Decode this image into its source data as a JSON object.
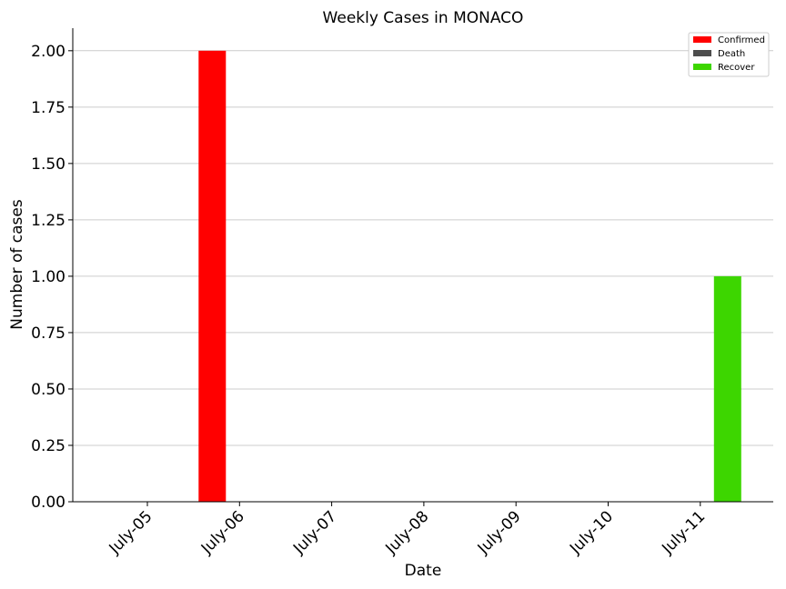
{
  "chart_data": {
    "type": "bar",
    "title": "Weekly Cases in MONACO",
    "xlabel": "Date",
    "ylabel": "Number of cases",
    "categories": [
      "July-05",
      "July-06",
      "July-07",
      "July-08",
      "July-09",
      "July-10",
      "July-11"
    ],
    "series": [
      {
        "name": "Confirmed",
        "color": "#ff0000",
        "values": [
          0,
          2,
          0,
          0,
          0,
          0,
          0
        ]
      },
      {
        "name": "Death",
        "color": "#4d4d4d",
        "values": [
          0,
          0,
          0,
          0,
          0,
          0,
          0
        ]
      },
      {
        "name": "Recover",
        "color": "#3dd600",
        "values": [
          0,
          0,
          0,
          0,
          0,
          0,
          1
        ]
      }
    ],
    "ylim": [
      0,
      2.1
    ],
    "yticks": [
      "0.00",
      "0.25",
      "0.50",
      "0.75",
      "1.00",
      "1.25",
      "1.50",
      "1.75",
      "2.00"
    ],
    "grid": "horizontal",
    "legend": "top-right"
  }
}
